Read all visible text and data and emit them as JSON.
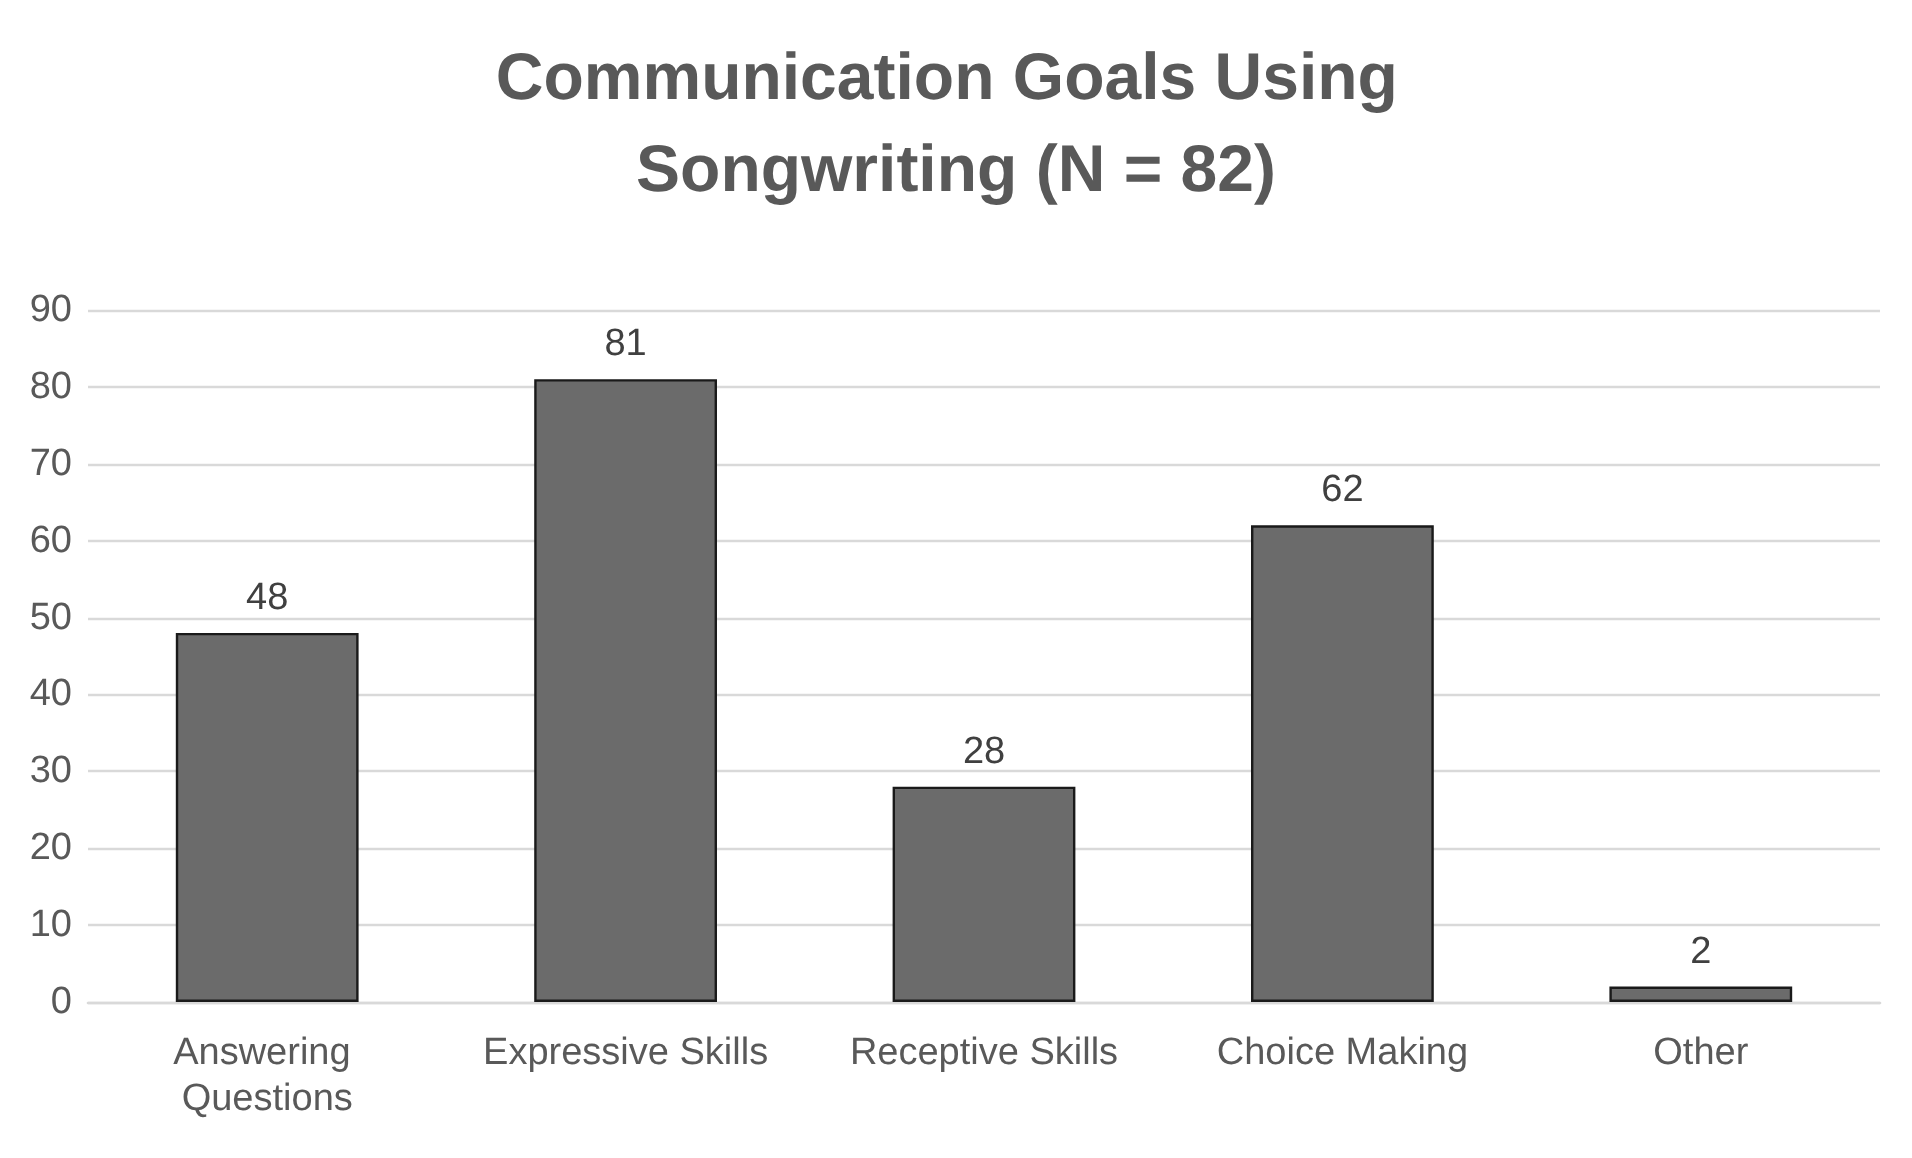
{
  "chart_data": {
    "type": "bar",
    "title": "Communication Goals Using Songwriting (N = 82)",
    "categories": [
      "Answering Questions",
      "Expressive Skills",
      "Receptive Skills",
      "Choice Making",
      "Other"
    ],
    "values": [
      48,
      81,
      28,
      62,
      2
    ],
    "color": "#6b6b6b",
    "ylim": [
      0,
      90
    ],
    "yticks": [
      0,
      10,
      20,
      30,
      40,
      50,
      60,
      70,
      80,
      90
    ],
    "grid": "y",
    "data_labels": true
  }
}
